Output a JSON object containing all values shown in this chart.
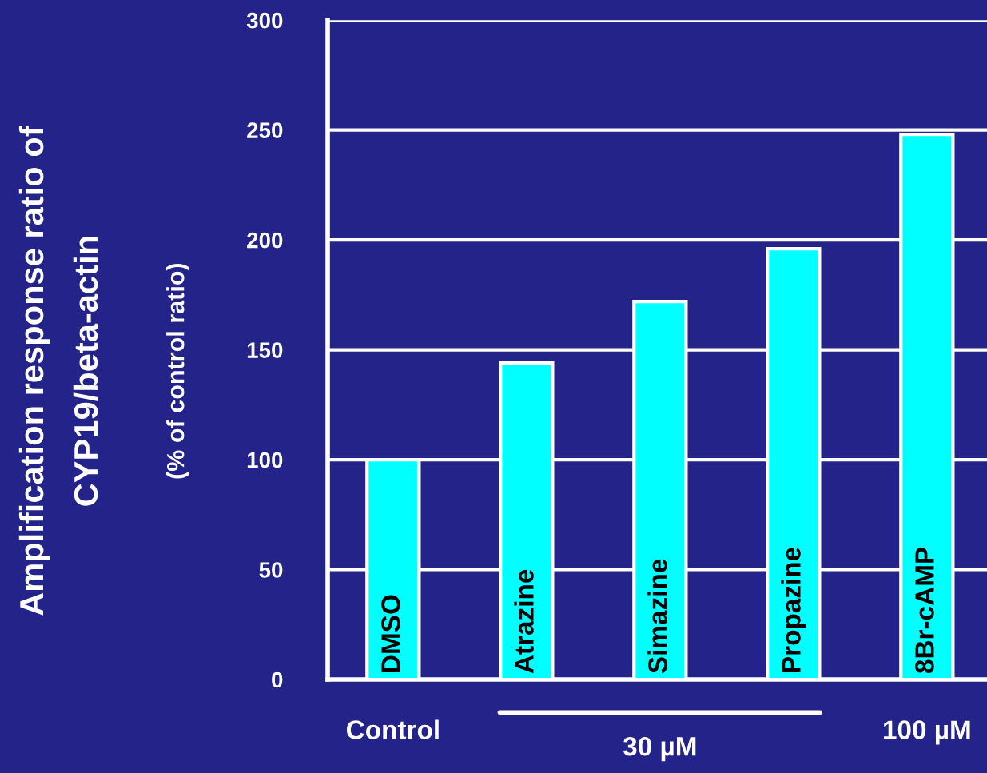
{
  "chart_data": {
    "type": "bar",
    "ylabel": "Amplification response ratio of\nCYP19/beta-actin\n(% of control ratio)",
    "categories": [
      "DMSO",
      "Atrazine",
      "Simazine",
      "Propazine",
      "8Br-cAMP"
    ],
    "values": [
      100,
      144,
      172,
      196,
      248
    ],
    "color": "#00ffff",
    "ylim": [
      0,
      300
    ],
    "yticks": [
      0,
      50,
      100,
      150,
      200,
      250,
      300
    ],
    "grid": "y",
    "annotations": [
      "Control",
      "30 µM",
      "100 µM"
    ]
  }
}
